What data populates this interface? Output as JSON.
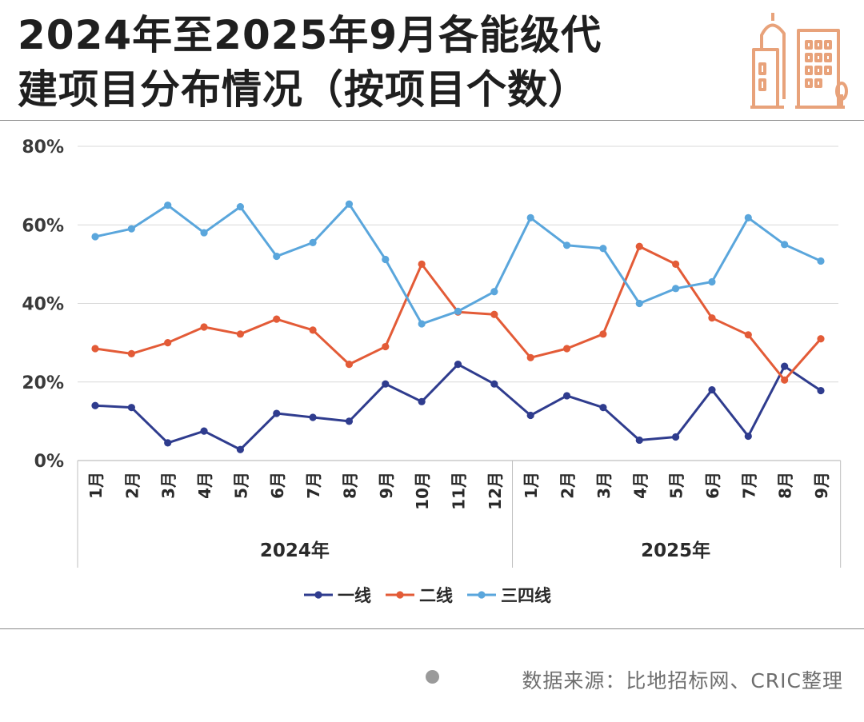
{
  "header": {
    "title_line1": "2024年至2025年9月各能级代",
    "title_line2": "建项目分布情况（按项目个数）"
  },
  "footer": {
    "source": "数据来源：比地招标网、CRIC整理"
  },
  "colors": {
    "line1": "#2F3C8E",
    "line2": "#E35B37",
    "line3": "#5AA6DC",
    "logo": "#E8A27A",
    "grid": "#D9D9D9",
    "axis": "#BFBFBF"
  },
  "chart_data": {
    "type": "line",
    "title": "",
    "categories": [
      "1月",
      "2月",
      "3月",
      "4月",
      "5月",
      "6月",
      "7月",
      "8月",
      "9月",
      "10月",
      "11月",
      "12月",
      "1月",
      "2月",
      "3月",
      "4月",
      "5月",
      "6月",
      "7月",
      "8月",
      "9月"
    ],
    "groups": [
      {
        "label": "2024年",
        "start": 0,
        "end": 11
      },
      {
        "label": "2025年",
        "start": 12,
        "end": 20
      }
    ],
    "y_ticks": [
      "0%",
      "20%",
      "40%",
      "60%",
      "80%"
    ],
    "ylim": [
      0,
      80
    ],
    "grid": true,
    "legend_position": "bottom-center",
    "series": [
      {
        "name": "一线",
        "color_key": "line1",
        "values": [
          14,
          13.5,
          4.5,
          7.5,
          2.8,
          12,
          11,
          10,
          19.5,
          15,
          24.5,
          19.5,
          11.5,
          16.5,
          13.5,
          5.2,
          6,
          18,
          6.2,
          24,
          17.8
        ]
      },
      {
        "name": "二线",
        "color_key": "line2",
        "values": [
          28.5,
          27.2,
          30,
          34,
          32.2,
          36,
          33.2,
          24.5,
          29,
          50,
          37.8,
          37.2,
          26.2,
          28.5,
          32.2,
          54.5,
          50,
          36.3,
          32,
          20.5,
          31
        ]
      },
      {
        "name": "三四线",
        "color_key": "line3",
        "values": [
          57,
          59,
          65,
          58,
          64.6,
          52,
          55.5,
          65.3,
          51.2,
          34.8,
          38,
          43,
          61.8,
          54.8,
          54,
          40,
          43.8,
          45.5,
          61.8,
          55,
          50.8
        ]
      }
    ]
  }
}
